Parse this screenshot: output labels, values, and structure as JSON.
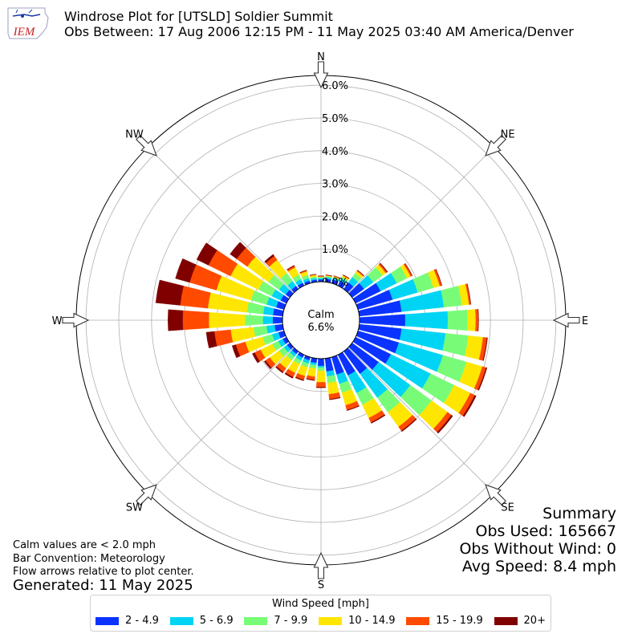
{
  "logo": {
    "text": "IEM"
  },
  "title": "Windrose Plot for [UTSLD] Soldier Summit",
  "subtitle": "Obs Between: 17 Aug 2006 12:15 PM - 11 May 2025 03:40 AM America/Denver",
  "calm": {
    "label": "Calm",
    "value": "6.6%"
  },
  "summary": {
    "heading": "Summary",
    "obs_used": "Obs Used: 165667",
    "obs_without_wind": "Obs Without Wind: 0",
    "avg_speed": "Avg Speed: 8.4 mph"
  },
  "notes": {
    "calm_def": "Calm values are < 2.0 mph",
    "bar_convention": "Bar Convention: Meteorology",
    "flow_arrows": "Flow arrows relative to plot center.",
    "generated": "Generated: 11 May 2025"
  },
  "legend": {
    "title": "Wind Speed [mph]"
  },
  "chart_data": {
    "type": "windrose",
    "radial_unit": "%",
    "rlim": [
      0,
      6.3
    ],
    "radial_ticks": [
      "0.0%",
      "1.0%",
      "2.0%",
      "3.0%",
      "4.0%",
      "5.0%",
      "6.0%"
    ],
    "directions": [
      0,
      10,
      20,
      30,
      40,
      50,
      60,
      70,
      80,
      90,
      100,
      110,
      120,
      130,
      140,
      150,
      160,
      170,
      180,
      190,
      200,
      210,
      220,
      230,
      240,
      250,
      260,
      270,
      280,
      290,
      300,
      310,
      320,
      330,
      340,
      350
    ],
    "compass_labels": [
      {
        "deg": 0,
        "label": "N"
      },
      {
        "deg": 45,
        "label": "NE"
      },
      {
        "deg": 90,
        "label": "E"
      },
      {
        "deg": 135,
        "label": "SE"
      },
      {
        "deg": 180,
        "label": "S"
      },
      {
        "deg": 225,
        "label": "SW"
      },
      {
        "deg": 270,
        "label": "W"
      },
      {
        "deg": 315,
        "label": "NW"
      }
    ],
    "grid": true,
    "legend_position": "bottom",
    "series": [
      {
        "name": "2 - 4.9",
        "color": "#0a33ff",
        "values": [
          0.07,
          0.1,
          0.12,
          0.16,
          0.25,
          0.45,
          0.85,
          1.1,
          1.3,
          1.4,
          1.3,
          1.3,
          1.2,
          1.0,
          0.85,
          0.7,
          0.55,
          0.4,
          0.22,
          0.14,
          0.1,
          0.1,
          0.1,
          0.11,
          0.13,
          0.18,
          0.25,
          0.3,
          0.3,
          0.25,
          0.2,
          0.16,
          0.12,
          0.1,
          0.08,
          0.07
        ]
      },
      {
        "name": "5 - 6.9",
        "color": "#00d4f4",
        "values": [
          0.04,
          0.05,
          0.05,
          0.08,
          0.2,
          0.35,
          0.55,
          0.8,
          1.3,
          1.3,
          1.35,
          1.4,
          1.35,
          1.2,
          0.9,
          0.6,
          0.3,
          0.15,
          0.05,
          0.07,
          0.1,
          0.1,
          0.1,
          0.12,
          0.15,
          0.2,
          0.25,
          0.3,
          0.3,
          0.3,
          0.3,
          0.25,
          0.18,
          0.12,
          0.08,
          0.05
        ]
      },
      {
        "name": "7 - 9.9",
        "color": "#78fc78",
        "values": [
          0.03,
          0.03,
          0.03,
          0.06,
          0.15,
          0.35,
          0.35,
          0.5,
          0.55,
          0.6,
          0.7,
          0.75,
          0.8,
          0.8,
          0.55,
          0.4,
          0.28,
          0.2,
          0.1,
          0.1,
          0.12,
          0.12,
          0.14,
          0.18,
          0.2,
          0.3,
          0.4,
          0.55,
          0.5,
          0.5,
          0.45,
          0.4,
          0.3,
          0.15,
          0.1,
          0.05
        ]
      },
      {
        "name": "10 - 14.9",
        "color": "#ffe600",
        "values": [
          0.02,
          0.02,
          0.02,
          0.04,
          0.08,
          0.12,
          0.12,
          0.2,
          0.22,
          0.25,
          0.45,
          0.5,
          0.55,
          0.6,
          0.55,
          0.45,
          0.4,
          0.35,
          0.35,
          0.25,
          0.28,
          0.3,
          0.3,
          0.35,
          0.4,
          0.55,
          0.7,
          1.1,
          1.2,
          1.1,
          0.95,
          0.8,
          0.5,
          0.25,
          0.12,
          0.05
        ]
      },
      {
        "name": "15 - 19.9",
        "color": "#ff4a00",
        "values": [
          0.01,
          0.01,
          0.01,
          0.02,
          0.03,
          0.05,
          0.05,
          0.06,
          0.05,
          0.08,
          0.12,
          0.12,
          0.15,
          0.15,
          0.15,
          0.15,
          0.15,
          0.15,
          0.15,
          0.1,
          0.12,
          0.14,
          0.14,
          0.16,
          0.2,
          0.3,
          0.5,
          0.8,
          0.85,
          0.85,
          0.75,
          0.4,
          0.15,
          0.05,
          0.03,
          0.01
        ]
      },
      {
        "name": "20+",
        "color": "#800000",
        "values": [
          0.01,
          0.01,
          0.01,
          0.01,
          0.01,
          0.02,
          0.01,
          0.01,
          0.01,
          0.01,
          0.02,
          0.03,
          0.05,
          0.05,
          0.03,
          0.03,
          0.02,
          0.02,
          0.02,
          0.02,
          0.03,
          0.04,
          0.04,
          0.05,
          0.08,
          0.12,
          0.25,
          0.45,
          0.75,
          0.45,
          0.4,
          0.25,
          0.06,
          0.02,
          0.01,
          0.01
        ]
      }
    ]
  }
}
